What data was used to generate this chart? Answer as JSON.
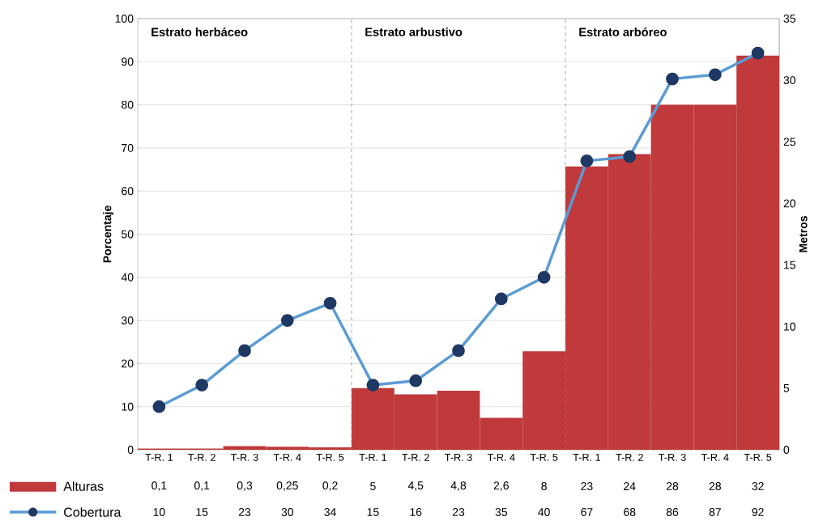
{
  "chart_data": {
    "type": "bar",
    "categories": [
      "T-R. 1",
      "T-R. 2",
      "T-R. 3",
      "T-R. 4",
      "T-R. 5",
      "T-R. 1",
      "T-R. 2",
      "T-R. 3",
      "T-R. 4",
      "T-R. 5",
      "T-R. 1",
      "T-R. 2",
      "T-R. 3",
      "T-R. 4",
      "T-R. 5"
    ],
    "ylabel": "Porcentaje",
    "y2label": "Metros",
    "ylim": [
      0,
      100
    ],
    "yticks": [
      0,
      10,
      20,
      30,
      40,
      50,
      60,
      70,
      80,
      90,
      100
    ],
    "y2lim": [
      0,
      35
    ],
    "y2ticks": [
      0,
      5,
      10,
      15,
      20,
      25,
      30,
      35
    ],
    "grid": "y",
    "legend": "bottom left",
    "marker": "circle",
    "annotations": [
      "Estrato herbáceo",
      "Estrato arbustivo",
      "Estrato arbóreo"
    ],
    "series": [
      {
        "name": "Alturas",
        "axis": "y2",
        "color": "#c0393b",
        "values": [
          0.1,
          0.1,
          0.3,
          0.25,
          0.2,
          5,
          4.5,
          4.8,
          2.6,
          8,
          23,
          24,
          28,
          28,
          32
        ],
        "value_labels": [
          "0,1",
          "0,1",
          "0,3",
          "0,25",
          "0,2",
          "5",
          "4,5",
          "4,8",
          "2,6",
          "8",
          "23",
          "24",
          "28",
          "28",
          "32"
        ]
      },
      {
        "name": "Cobertura",
        "type": "line",
        "color": "#5b9bd5",
        "values": [
          10,
          15,
          23,
          30,
          34,
          15,
          16,
          23,
          35,
          40,
          67,
          68,
          86,
          87,
          92
        ],
        "value_labels": [
          "10",
          "15",
          "23",
          "30",
          "34",
          "15",
          "16",
          "23",
          "35",
          "40",
          "67",
          "68",
          "86",
          "87",
          "92"
        ]
      }
    ]
  }
}
